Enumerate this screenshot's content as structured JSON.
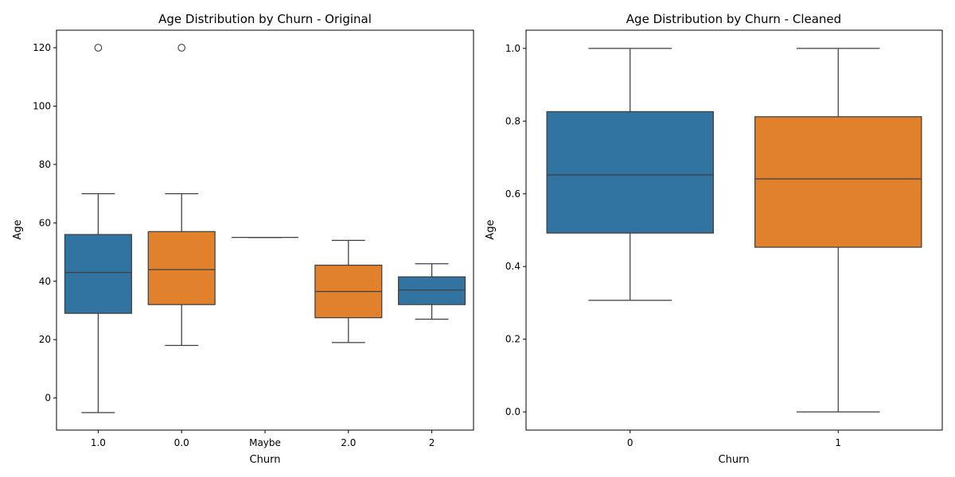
{
  "chart_data": [
    {
      "type": "box",
      "title": "Age Distribution by Churn - Original",
      "xlabel": "Churn",
      "ylabel": "Age",
      "ylim": [
        -11,
        126
      ],
      "yticks": [
        0,
        20,
        40,
        60,
        80,
        100,
        120
      ],
      "categories": [
        "1.0",
        "0.0",
        "Maybe",
        "2.0",
        "2"
      ],
      "boxes": [
        {
          "category": "1.0",
          "whisker_low": -5,
          "q1": 29,
          "median": 43,
          "q3": 56,
          "whisker_high": 70,
          "outliers": [
            120
          ],
          "color": "#3274a1"
        },
        {
          "category": "0.0",
          "whisker_low": 18,
          "q1": 32,
          "median": 44,
          "q3": 57,
          "whisker_high": 70,
          "outliers": [
            120
          ],
          "color": "#e1812c"
        },
        {
          "category": "Maybe",
          "whisker_low": 55,
          "q1": 55,
          "median": 55,
          "q3": 55,
          "whisker_high": 55,
          "outliers": [],
          "color": "#3a923a"
        },
        {
          "category": "2.0",
          "whisker_low": 19,
          "q1": 27.5,
          "median": 36.5,
          "q3": 45.5,
          "whisker_high": 54,
          "outliers": [],
          "color": "#e1812c"
        },
        {
          "category": "2",
          "whisker_low": 27,
          "q1": 32,
          "median": 37,
          "q3": 41.5,
          "whisker_high": 46,
          "outliers": [],
          "color": "#3274a1"
        }
      ]
    },
    {
      "type": "box",
      "title": "Age Distribution by Churn - Cleaned",
      "xlabel": "Churn",
      "ylabel": "Age",
      "ylim": [
        -0.05,
        1.05
      ],
      "yticks": [
        "0.0",
        "0.2",
        "0.4",
        "0.6",
        "0.8",
        "1.0"
      ],
      "categories": [
        "0",
        "1"
      ],
      "boxes": [
        {
          "category": "0",
          "whisker_low": 0.307,
          "q1": 0.492,
          "median": 0.652,
          "q3": 0.826,
          "whisker_high": 1.0,
          "outliers": [],
          "color": "#3274a1"
        },
        {
          "category": "1",
          "whisker_low": 0.0,
          "q1": 0.453,
          "median": 0.641,
          "q3": 0.812,
          "whisker_high": 1.0,
          "outliers": [],
          "color": "#e1812c"
        }
      ]
    }
  ]
}
